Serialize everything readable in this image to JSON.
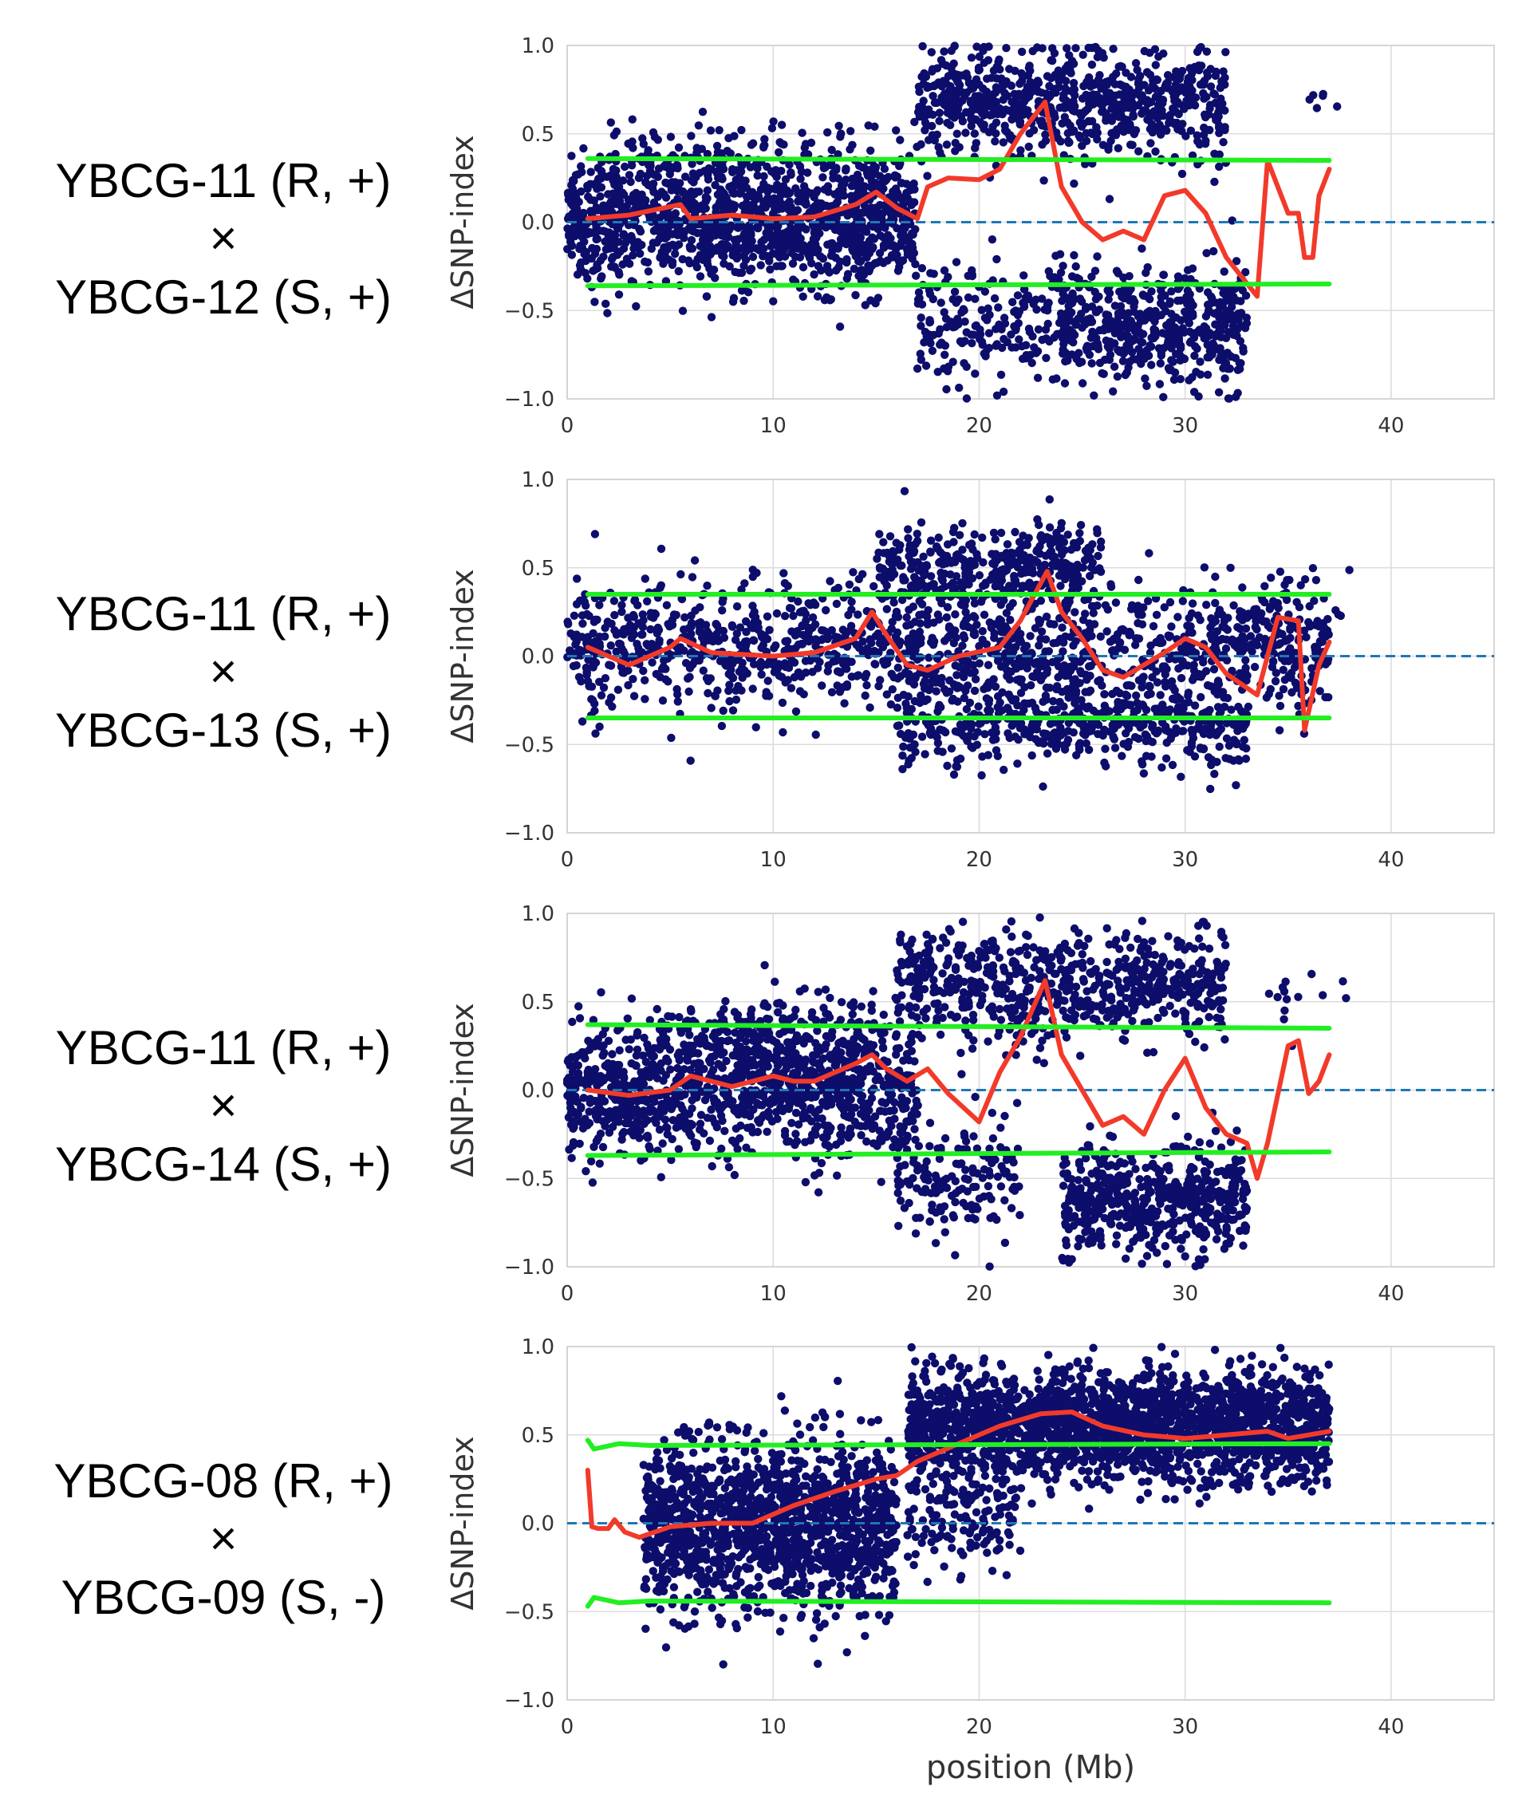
{
  "figure": {
    "panels": [
      {
        "cross": {
          "parent_r": "YBCG-11 (R, +)",
          "symbol": "×",
          "parent_s": "YBCG-12 (S, +)"
        }
      },
      {
        "cross": {
          "parent_r": "YBCG-11 (R, +)",
          "symbol": "×",
          "parent_s": "YBCG-13 (S, +)"
        }
      },
      {
        "cross": {
          "parent_r": "YBCG-11 (R, +)",
          "symbol": "×",
          "parent_s": "YBCG-14 (S, +)"
        }
      },
      {
        "cross": {
          "parent_r": "YBCG-08 (R, +)",
          "symbol": "×",
          "parent_s": "YBCG-09 (S, -)"
        }
      }
    ]
  },
  "colors": {
    "points": "#0d0d6b",
    "delta_line": "#f23a2a",
    "threshold": "#22ee22",
    "zero_line": "#1f77b4",
    "grid": "#dcdcdc"
  },
  "chart_data": [
    {
      "type": "scatter",
      "ylabel": "ΔSNP-index",
      "xlabel": "",
      "xlim": [
        0,
        45
      ],
      "ylim": [
        -1.0,
        1.0
      ],
      "xticks": [
        "0",
        "10",
        "20",
        "30",
        "40"
      ],
      "yticks": [
        "−1.0",
        "−0.5",
        "0.0",
        "0.5",
        "1.0"
      ],
      "grid": true,
      "point_regions": [
        {
          "x": [
            0,
            17
          ],
          "y_center": 0.0,
          "spread": 0.33,
          "density": 2200
        },
        {
          "x": [
            2,
            15
          ],
          "y_center": 0.3,
          "spread": 0.25,
          "density": 350
        },
        {
          "x": [
            17,
            32
          ],
          "y_center": 0.68,
          "spread": 0.28,
          "density": 1400
        },
        {
          "x": [
            17,
            24
          ],
          "y_center": -0.55,
          "spread": 0.3,
          "density": 350
        },
        {
          "x": [
            24,
            33
          ],
          "y_center": -0.6,
          "spread": 0.32,
          "density": 900
        },
        {
          "x": [
            36,
            38
          ],
          "y_center": 0.68,
          "spread": 0.1,
          "density": 10
        }
      ],
      "series": [
        {
          "name": "ΔSNP-index (sliding window)",
          "x": [
            1,
            3,
            5.5,
            6,
            8,
            10,
            12,
            14,
            15,
            16,
            17,
            17.5,
            18.5,
            20,
            21,
            22,
            23.2,
            24,
            25,
            26,
            27,
            28,
            29,
            30,
            31,
            32,
            33.5,
            34,
            35,
            35.5,
            35.8,
            36.2,
            36.5,
            37
          ],
          "y": [
            0.02,
            0.04,
            0.1,
            0.02,
            0.04,
            0.02,
            0.03,
            0.1,
            0.17,
            0.08,
            0.02,
            0.2,
            0.25,
            0.24,
            0.3,
            0.5,
            0.68,
            0.2,
            0.0,
            -0.1,
            -0.05,
            -0.1,
            0.15,
            0.18,
            0.05,
            -0.2,
            -0.42,
            0.35,
            0.05,
            0.05,
            -0.2,
            -0.2,
            0.15,
            0.3
          ]
        },
        {
          "name": "upper threshold",
          "x": [
            1,
            37
          ],
          "y": [
            0.36,
            0.35
          ]
        },
        {
          "name": "lower threshold",
          "x": [
            1,
            37
          ],
          "y": [
            -0.36,
            -0.35
          ]
        }
      ]
    },
    {
      "type": "scatter",
      "ylabel": "ΔSNP-index",
      "xlabel": "",
      "xlim": [
        0,
        45
      ],
      "ylim": [
        -1.0,
        1.0
      ],
      "xticks": [
        "0",
        "10",
        "20",
        "30",
        "40"
      ],
      "yticks": [
        "−1.0",
        "−0.5",
        "0.0",
        "0.5",
        "1.0"
      ],
      "grid": true,
      "point_regions": [
        {
          "x": [
            0,
            37
          ],
          "y_center": 0.05,
          "spread": 0.33,
          "density": 2600
        },
        {
          "x": [
            15,
            26
          ],
          "y_center": 0.5,
          "spread": 0.22,
          "density": 700
        },
        {
          "x": [
            16,
            33
          ],
          "y_center": -0.38,
          "spread": 0.22,
          "density": 900
        },
        {
          "x": [
            34,
            38
          ],
          "y_center": 0.3,
          "spread": 0.2,
          "density": 30
        }
      ],
      "series": [
        {
          "name": "ΔSNP-index (sliding window)",
          "x": [
            1,
            3,
            5,
            5.5,
            7,
            10,
            12,
            14,
            14.8,
            15.5,
            16.5,
            17.5,
            19,
            21,
            22,
            23.3,
            24,
            25,
            26,
            27,
            28,
            29,
            30,
            31,
            32,
            33.5,
            34.5,
            35.5,
            35.8,
            36.5,
            37
          ],
          "y": [
            0.05,
            -0.05,
            0.05,
            0.1,
            0.02,
            0.0,
            0.02,
            0.1,
            0.25,
            0.12,
            -0.05,
            -0.08,
            0.0,
            0.05,
            0.2,
            0.48,
            0.25,
            0.1,
            -0.08,
            -0.12,
            -0.05,
            0.02,
            0.1,
            0.05,
            -0.1,
            -0.22,
            0.22,
            0.2,
            -0.42,
            -0.05,
            0.08
          ]
        },
        {
          "name": "upper threshold",
          "x": [
            1,
            37
          ],
          "y": [
            0.35,
            0.35
          ]
        },
        {
          "name": "lower threshold",
          "x": [
            1,
            37
          ],
          "y": [
            -0.35,
            -0.35
          ]
        }
      ]
    },
    {
      "type": "scatter",
      "ylabel": "ΔSNP-index",
      "xlabel": "",
      "xlim": [
        0,
        45
      ],
      "ylim": [
        -1.0,
        1.0
      ],
      "xticks": [
        "0",
        "10",
        "20",
        "30",
        "40"
      ],
      "yticks": [
        "−1.0",
        "−0.5",
        "0.0",
        "0.5",
        "1.0"
      ],
      "grid": true,
      "point_regions": [
        {
          "x": [
            0,
            17
          ],
          "y_center": 0.0,
          "spread": 0.35,
          "density": 2100
        },
        {
          "x": [
            4,
            15
          ],
          "y_center": 0.3,
          "spread": 0.22,
          "density": 350
        },
        {
          "x": [
            16,
            32
          ],
          "y_center": 0.6,
          "spread": 0.3,
          "density": 1200
        },
        {
          "x": [
            16,
            22
          ],
          "y_center": -0.5,
          "spread": 0.3,
          "density": 300
        },
        {
          "x": [
            24,
            33
          ],
          "y_center": -0.6,
          "spread": 0.3,
          "density": 1000
        },
        {
          "x": [
            34,
            38
          ],
          "y_center": 0.5,
          "spread": 0.25,
          "density": 25
        }
      ],
      "series": [
        {
          "name": "ΔSNP-index (sliding window)",
          "x": [
            1,
            3,
            5,
            6,
            8,
            10,
            11,
            12,
            14,
            14.8,
            15.5,
            16.5,
            17.5,
            18.5,
            20,
            21,
            22,
            23.2,
            24,
            25,
            26,
            27,
            28,
            29,
            30,
            31,
            32,
            33,
            33.5,
            34,
            35,
            35.5,
            36,
            36.5,
            37
          ],
          "y": [
            0.0,
            -0.03,
            0.0,
            0.08,
            0.02,
            0.08,
            0.05,
            0.05,
            0.15,
            0.2,
            0.12,
            0.05,
            0.12,
            -0.02,
            -0.18,
            0.1,
            0.3,
            0.62,
            0.2,
            0.0,
            -0.2,
            -0.15,
            -0.25,
            0.0,
            0.18,
            -0.1,
            -0.25,
            -0.3,
            -0.5,
            -0.3,
            0.25,
            0.28,
            -0.02,
            0.05,
            0.2
          ]
        },
        {
          "name": "upper threshold",
          "x": [
            1,
            37
          ],
          "y": [
            0.37,
            0.35
          ]
        },
        {
          "name": "lower threshold",
          "x": [
            1,
            37
          ],
          "y": [
            -0.37,
            -0.35
          ]
        }
      ]
    },
    {
      "type": "scatter",
      "ylabel": "ΔSNP-index",
      "xlabel": "position (Mb)",
      "xlim": [
        0,
        45
      ],
      "ylim": [
        -1.0,
        1.0
      ],
      "xticks": [
        "0",
        "10",
        "20",
        "30",
        "40"
      ],
      "yticks": [
        "−1.0",
        "−0.5",
        "0.0",
        "0.5",
        "1.0"
      ],
      "grid": true,
      "point_regions": [
        {
          "x": [
            3.7,
            16
          ],
          "y_center": 0.0,
          "spread": 0.45,
          "density": 2600
        },
        {
          "x": [
            16.5,
            37
          ],
          "y_center": 0.55,
          "spread": 0.28,
          "density": 3800
        },
        {
          "x": [
            16.5,
            22
          ],
          "y_center": 0.05,
          "spread": 0.25,
          "density": 250
        }
      ],
      "series": [
        {
          "name": "ΔSNP-index (sliding window)",
          "x": [
            1,
            1.2,
            1.5,
            2,
            2.3,
            2.8,
            3.5,
            5,
            7,
            9,
            11,
            13,
            15,
            16,
            17,
            19,
            21,
            23,
            24.5,
            26,
            28,
            30,
            32,
            34,
            35,
            36,
            37
          ],
          "y": [
            0.3,
            -0.02,
            -0.03,
            -0.03,
            0.02,
            -0.05,
            -0.08,
            -0.02,
            0.0,
            0.0,
            0.1,
            0.18,
            0.25,
            0.27,
            0.35,
            0.45,
            0.55,
            0.62,
            0.63,
            0.55,
            0.5,
            0.48,
            0.5,
            0.52,
            0.48,
            0.5,
            0.52
          ]
        },
        {
          "name": "upper threshold",
          "x": [
            1,
            1.3,
            2.5,
            4,
            37
          ],
          "y": [
            0.47,
            0.42,
            0.45,
            0.44,
            0.45
          ]
        },
        {
          "name": "lower threshold",
          "x": [
            1,
            1.3,
            2.5,
            4,
            37
          ],
          "y": [
            -0.47,
            -0.42,
            -0.45,
            -0.44,
            -0.45
          ]
        }
      ]
    }
  ]
}
